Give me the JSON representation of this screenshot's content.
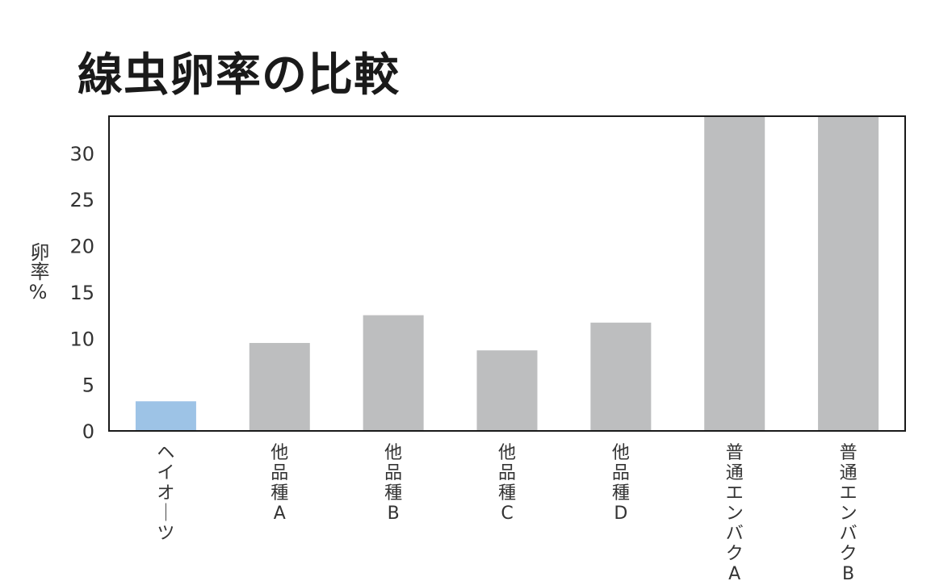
{
  "chart_data": {
    "type": "bar",
    "title": "線虫卵率の比較",
    "xlabel": "",
    "ylabel": "卵率%",
    "categories": [
      "ヘイオーツ",
      "他品種A",
      "他品種B",
      "他品種C",
      "他品種D",
      "普通エンバクA",
      "普通エンバクB"
    ],
    "values": [
      3.2,
      9.5,
      12.5,
      8.7,
      11.7,
      34,
      34
    ],
    "bar_colors": [
      "#9dc3e6",
      "#bdbebf",
      "#bdbebf",
      "#bdbebf",
      "#bdbebf",
      "#bdbebf",
      "#bdbebf"
    ],
    "ylim": [
      0,
      34
    ],
    "yticks": [
      0,
      5,
      10,
      15,
      20,
      25,
      30
    ],
    "grid": false,
    "legend": "none"
  }
}
